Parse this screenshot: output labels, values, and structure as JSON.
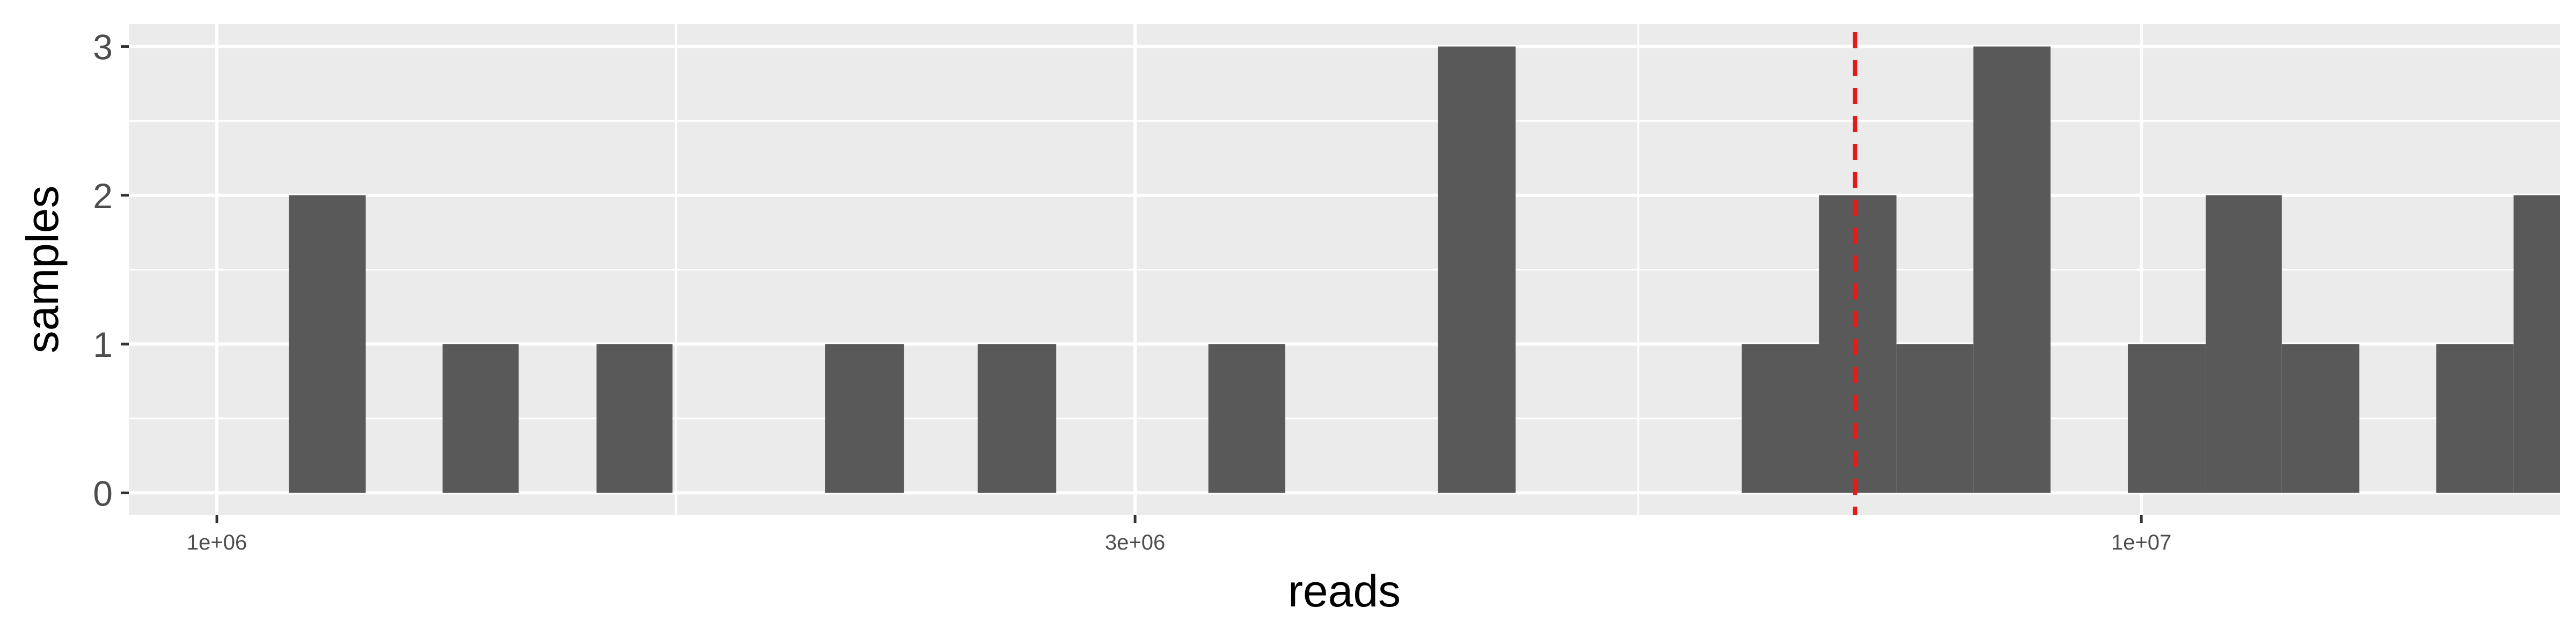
{
  "chart_data": {
    "type": "histogram",
    "x_scale": "log10",
    "xlabel": "reads",
    "ylabel": "samples",
    "xlim": [
      900000,
      16500000
    ],
    "ylim": [
      -0.15,
      3.15
    ],
    "x_ticks": [
      {
        "value": 1000000,
        "label": "1e+06"
      },
      {
        "value": 3000000,
        "label": "3e+06"
      },
      {
        "value": 10000000,
        "label": "1e+07"
      }
    ],
    "y_ticks": [
      {
        "value": 0,
        "label": "0"
      },
      {
        "value": 1,
        "label": "1"
      },
      {
        "value": 2,
        "label": "2"
      },
      {
        "value": 3,
        "label": "3"
      }
    ],
    "bins": [
      {
        "x0": 1090000,
        "x1": 1195000,
        "count": 2
      },
      {
        "x0": 1310000,
        "x1": 1435000,
        "count": 1
      },
      {
        "x0": 1575000,
        "x1": 1725000,
        "count": 1
      },
      {
        "x0": 2070000,
        "x1": 2275000,
        "count": 1
      },
      {
        "x0": 2485000,
        "x1": 2730000,
        "count": 1
      },
      {
        "x0": 3275000,
        "x1": 3590000,
        "count": 1
      },
      {
        "x0": 4310000,
        "x1": 4730000,
        "count": 3
      },
      {
        "x0": 6200000,
        "x1": 6800000,
        "count": 1
      },
      {
        "x0": 6800000,
        "x1": 7460000,
        "count": 2
      },
      {
        "x0": 7460000,
        "x1": 8180000,
        "count": 1
      },
      {
        "x0": 8180000,
        "x1": 8970000,
        "count": 3
      },
      {
        "x0": 9840000,
        "x1": 10800000,
        "count": 1
      },
      {
        "x0": 10800000,
        "x1": 11830000,
        "count": 2
      },
      {
        "x0": 11830000,
        "x1": 12980000,
        "count": 1
      },
      {
        "x0": 14230000,
        "x1": 15610000,
        "count": 1
      },
      {
        "x0": 15610000,
        "x1": 17120000,
        "count": 2
      }
    ],
    "reference_line": {
      "x": 7100000,
      "color": "#e41a1c",
      "style": "dashed"
    },
    "colors": {
      "panel": "#ebebeb",
      "grid": "#ffffff",
      "bar": "#595959"
    },
    "grid": true
  }
}
